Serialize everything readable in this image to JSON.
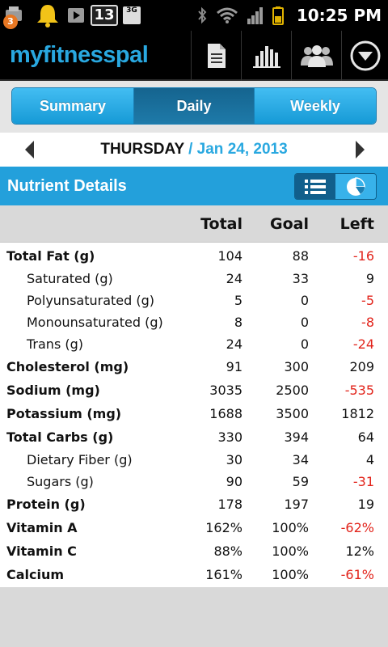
{
  "status_bar": {
    "notification_count": "3",
    "calendar_day": "13",
    "network": "3G",
    "time": "10:25 PM"
  },
  "app": {
    "logo": "myfitnesspal",
    "header_icons": [
      "document-icon",
      "chart-icon",
      "friends-icon",
      "menu-down-icon"
    ],
    "accent_color": "#29a8e0"
  },
  "tabs": [
    {
      "label": "Summary",
      "active": false
    },
    {
      "label": "Daily",
      "active": true
    },
    {
      "label": "Weekly",
      "active": false
    }
  ],
  "date_nav": {
    "day": "THURSDAY",
    "separator": " / ",
    "date": "Jan 24, 2013"
  },
  "section": {
    "title": "Nutrient Details"
  },
  "table": {
    "headers": {
      "total": "Total",
      "goal": "Goal",
      "left": "Left"
    },
    "rows": [
      {
        "name": "Total Fat (g)",
        "total": "104",
        "goal": "88",
        "left": "-16",
        "bold": true,
        "neg": true
      },
      {
        "name": "Saturated (g)",
        "total": "24",
        "goal": "33",
        "left": "9",
        "bold": false,
        "neg": false
      },
      {
        "name": "Polyunsaturated (g)",
        "total": "5",
        "goal": "0",
        "left": "-5",
        "bold": false,
        "neg": true
      },
      {
        "name": "Monounsaturated (g)",
        "total": "8",
        "goal": "0",
        "left": "-8",
        "bold": false,
        "neg": true
      },
      {
        "name": "Trans (g)",
        "total": "24",
        "goal": "0",
        "left": "-24",
        "bold": false,
        "neg": true
      },
      {
        "name": "Cholesterol (mg)",
        "total": "91",
        "goal": "300",
        "left": "209",
        "bold": true,
        "neg": false
      },
      {
        "name": "Sodium (mg)",
        "total": "3035",
        "goal": "2500",
        "left": "-535",
        "bold": true,
        "neg": true
      },
      {
        "name": "Potassium (mg)",
        "total": "1688",
        "goal": "3500",
        "left": "1812",
        "bold": true,
        "neg": false
      },
      {
        "name": "Total Carbs (g)",
        "total": "330",
        "goal": "394",
        "left": "64",
        "bold": true,
        "neg": false
      },
      {
        "name": "Dietary Fiber (g)",
        "total": "30",
        "goal": "34",
        "left": "4",
        "bold": false,
        "neg": false
      },
      {
        "name": "Sugars (g)",
        "total": "90",
        "goal": "59",
        "left": "-31",
        "bold": false,
        "neg": true
      },
      {
        "name": "Protein (g)",
        "total": "178",
        "goal": "197",
        "left": "19",
        "bold": true,
        "neg": false
      },
      {
        "name": "Vitamin A",
        "total": "162%",
        "goal": "100%",
        "left": "-62%",
        "bold": true,
        "neg": true
      },
      {
        "name": "Vitamin C",
        "total": "88%",
        "goal": "100%",
        "left": "12%",
        "bold": true,
        "neg": false
      },
      {
        "name": "Calcium",
        "total": "161%",
        "goal": "100%",
        "left": "-61%",
        "bold": true,
        "neg": true
      }
    ]
  }
}
